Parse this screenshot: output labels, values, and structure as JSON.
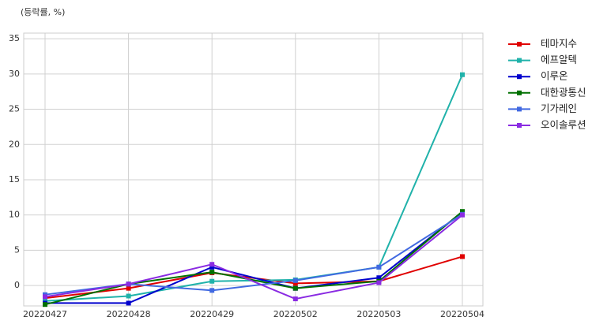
{
  "chart_data": {
    "type": "line",
    "ylabel": "(등락률, %)",
    "categories": [
      "20220427",
      "20220428",
      "20220429",
      "20220502",
      "20220503",
      "20220504"
    ],
    "series": [
      {
        "name": "테마지수",
        "color": "#e00000",
        "values": [
          -1.8,
          -0.4,
          1.8,
          0.3,
          0.6,
          4.1
        ]
      },
      {
        "name": "에프알텍",
        "color": "#20b2aa",
        "values": [
          -2.2,
          -1.5,
          0.6,
          0.8,
          2.6,
          29.9
        ]
      },
      {
        "name": "이루온",
        "color": "#0000cd",
        "values": [
          -2.5,
          -2.5,
          2.6,
          -0.4,
          1.1,
          10.4
        ]
      },
      {
        "name": "대한광통신",
        "color": "#007000",
        "values": [
          -2.7,
          0.2,
          1.9,
          -0.4,
          0.6,
          10.5
        ]
      },
      {
        "name": "기가레인",
        "color": "#4169e1",
        "values": [
          -1.3,
          0.2,
          -0.7,
          0.7,
          2.6,
          10.1
        ]
      },
      {
        "name": "오이솔루션",
        "color": "#8a2be2",
        "values": [
          -1.6,
          0.2,
          3.0,
          -1.9,
          0.4,
          10.0
        ]
      }
    ],
    "ylim": [
      -2.9,
      35.8
    ],
    "yticks": [
      0,
      5,
      10,
      15,
      20,
      25,
      30,
      35
    ],
    "grid": true,
    "legend": "outside-right"
  }
}
